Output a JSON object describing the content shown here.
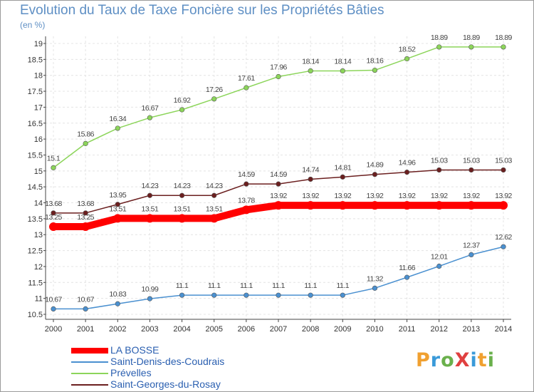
{
  "header": {
    "title": "Evolution du Taux de Taxe Foncière sur les Propriétés Bâties",
    "unit": "(en %)"
  },
  "logo": {
    "text": "ProXiti",
    "colors": [
      "#f0a030",
      "#3a9ad9",
      "#6ab04c",
      "#e04040",
      "#3a9ad9",
      "#f0a030",
      "#6ab04c"
    ]
  },
  "chart_data": {
    "type": "line",
    "title": "Evolution du Taux de Taxe Foncière sur les Propriétés Bâties",
    "ylabel": "(en %)",
    "xlabel": "",
    "ylim": [
      10.5,
      19
    ],
    "yticks": [
      "10.5",
      "11",
      "11.5",
      "12",
      "12.5",
      "13",
      "13.5",
      "14",
      "14.5",
      "15",
      "15.5",
      "16",
      "16.5",
      "17",
      "17.5",
      "18",
      "18.5",
      "19"
    ],
    "categories": [
      "2000",
      "2001",
      "2002",
      "2003",
      "2004",
      "2005",
      "2006",
      "2007",
      "2008",
      "2009",
      "2010",
      "2011",
      "2012",
      "2013",
      "2014"
    ],
    "grid": true,
    "legend_position": "bottom-left",
    "series": [
      {
        "name": "LA BOSSE",
        "color": "#ff0000",
        "labels": [
          "13.25",
          "13.25",
          "13.51",
          "13.51",
          "13.51",
          "13.51",
          "13.78",
          "13.92",
          "13.92",
          "13.92",
          "13.92",
          "13.92",
          "13.92",
          "13.92",
          "13.92"
        ],
        "values": [
          13.25,
          13.25,
          13.51,
          13.51,
          13.51,
          13.51,
          13.78,
          13.92,
          13.92,
          13.92,
          13.92,
          13.92,
          13.92,
          13.92,
          13.92
        ]
      },
      {
        "name": "Saint-Denis-des-Coudrais",
        "color": "#4a90d0",
        "labels": [
          "10.67",
          "10.67",
          "10.83",
          "10.99",
          "11.1",
          "11.1",
          "11.1",
          "11.1",
          "11.1",
          "11.1",
          "11.32",
          "11.66",
          "12.01",
          "12.37",
          "12.62"
        ],
        "values": [
          10.67,
          10.67,
          10.83,
          10.99,
          11.1,
          11.1,
          11.1,
          11.1,
          11.1,
          11.1,
          11.32,
          11.66,
          12.01,
          12.37,
          12.62
        ]
      },
      {
        "name": "Prévelles",
        "color": "#8cd55a",
        "labels": [
          "15.1",
          "15.86",
          "16.34",
          "16.67",
          "16.92",
          "17.26",
          "17.61",
          "17.96",
          "18.14",
          "18.14",
          "18.16",
          "18.52",
          "18.89",
          "18.89",
          "18.89"
        ],
        "values": [
          15.1,
          15.86,
          16.34,
          16.67,
          16.92,
          17.26,
          17.61,
          17.96,
          18.14,
          18.14,
          18.16,
          18.52,
          18.89,
          18.89,
          18.89
        ]
      },
      {
        "name": "Saint-Georges-du-Rosay",
        "color": "#6b1f1f",
        "labels": [
          "13.68",
          "13.68",
          "13.95",
          "14.23",
          "14.23",
          "14.23",
          "14.59",
          "14.59",
          "14.74",
          "14.81",
          "14.89",
          "14.96",
          "15.03",
          "15.03",
          "15.03"
        ],
        "values": [
          13.68,
          13.68,
          13.95,
          14.23,
          14.23,
          14.23,
          14.59,
          14.59,
          14.74,
          14.81,
          14.89,
          14.96,
          15.03,
          15.03,
          15.03
        ]
      }
    ]
  }
}
